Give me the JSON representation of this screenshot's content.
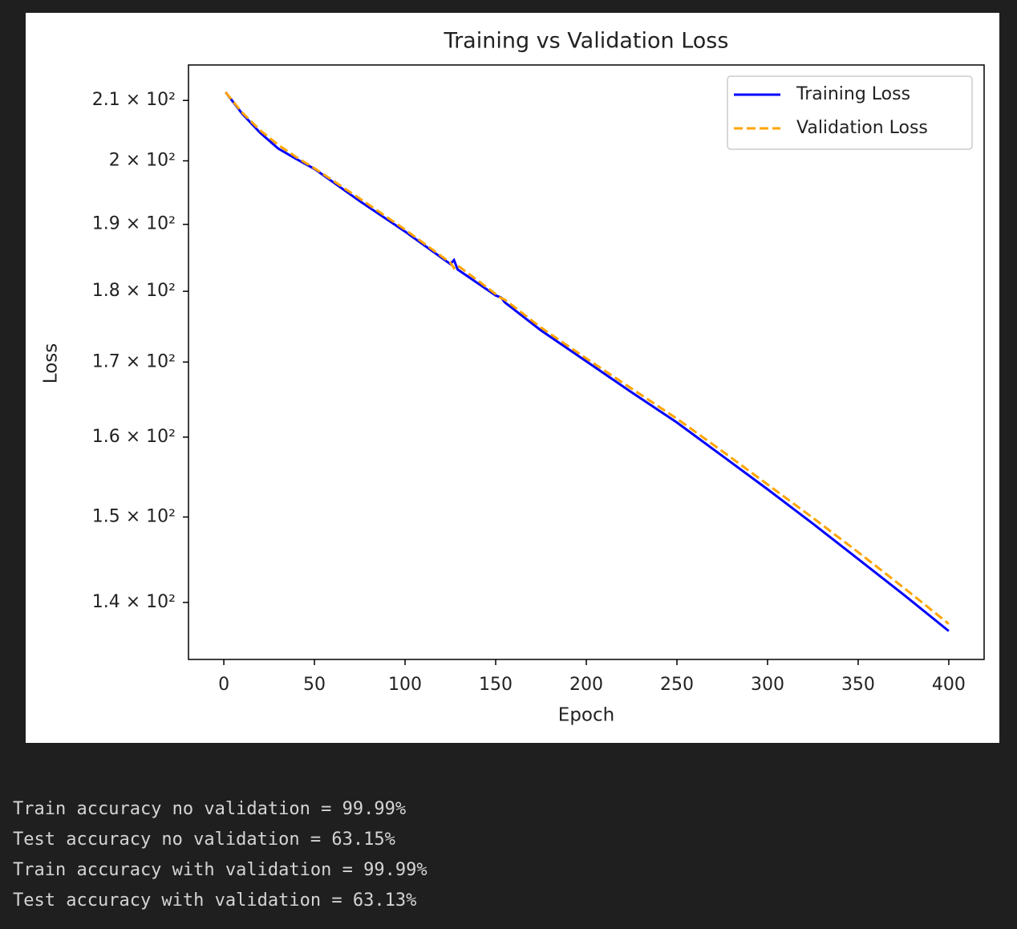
{
  "chart_data": {
    "type": "line",
    "title": "Training vs Validation Loss",
    "xlabel": "Epoch",
    "ylabel": "Loss",
    "yscale": "log",
    "legend": "upper right",
    "x": [
      1,
      10,
      20,
      30,
      40,
      50,
      75,
      100,
      125,
      127,
      129,
      140,
      150,
      153,
      155,
      175,
      200,
      225,
      250,
      275,
      300,
      325,
      350,
      375,
      400
    ],
    "series": [
      {
        "name": "Training Loss",
        "color": "#0000ff",
        "dash": "solid",
        "values": [
          211.4,
          207.8,
          204.6,
          202.0,
          200.3,
          198.7,
          193.6,
          188.9,
          184.0,
          184.6,
          183.2,
          181.2,
          179.4,
          179.1,
          178.4,
          174.4,
          170.1,
          165.9,
          161.9,
          157.6,
          153.4,
          149.2,
          145.0,
          140.9,
          136.8
        ]
      },
      {
        "name": "Validation Loss",
        "color": "#ffa500",
        "dash": "dashed",
        "values": [
          211.4,
          208.0,
          205.0,
          202.6,
          200.6,
          198.8,
          194.0,
          189.2,
          184.2,
          183.4,
          183.8,
          181.6,
          179.6,
          179.0,
          178.8,
          174.8,
          170.5,
          166.4,
          162.4,
          158.2,
          154.0,
          149.9,
          145.8,
          141.7,
          137.6
        ]
      }
    ],
    "xlim": [
      -19.5,
      419.5
    ],
    "xticks": [
      0,
      50,
      100,
      150,
      200,
      250,
      300,
      350,
      400
    ],
    "ylim": [
      133.7,
      216.1
    ],
    "yticks": [
      {
        "value": 140,
        "label": "1.4 × 10²"
      },
      {
        "value": 150,
        "label": "1.5 × 10²"
      },
      {
        "value": 160,
        "label": "1.6 × 10²"
      },
      {
        "value": 170,
        "label": "1.7 × 10²"
      },
      {
        "value": 180,
        "label": "1.8 × 10²"
      },
      {
        "value": 190,
        "label": "1.9 × 10²"
      },
      {
        "value": 200,
        "label": "2 × 10²"
      },
      {
        "value": 210,
        "label": "2.1 × 10²"
      }
    ]
  },
  "output_lines": [
    "Train accuracy no validation = 99.99%",
    "Test accuracy no validation = 63.15%",
    "Train accuracy with validation = 99.99%",
    "Test accuracy with validation = 63.13%"
  ]
}
